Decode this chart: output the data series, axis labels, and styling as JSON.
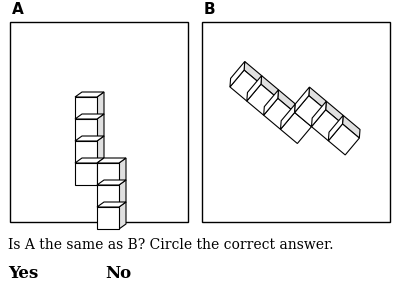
{
  "label_A": "A",
  "label_B": "B",
  "question": "Is A the same as B? Circle the correct answer.",
  "answer_yes": "Yes",
  "answer_no": "No",
  "bg_color": "#ffffff",
  "text_color": "#000000",
  "box_color": "#000000",
  "label_fontsize": 11,
  "question_fontsize": 10,
  "answer_fontsize": 12,
  "face_top": "#ffffff",
  "face_left": "#c0c0c0",
  "face_right": "#e0e0e0",
  "lw": 0.8
}
